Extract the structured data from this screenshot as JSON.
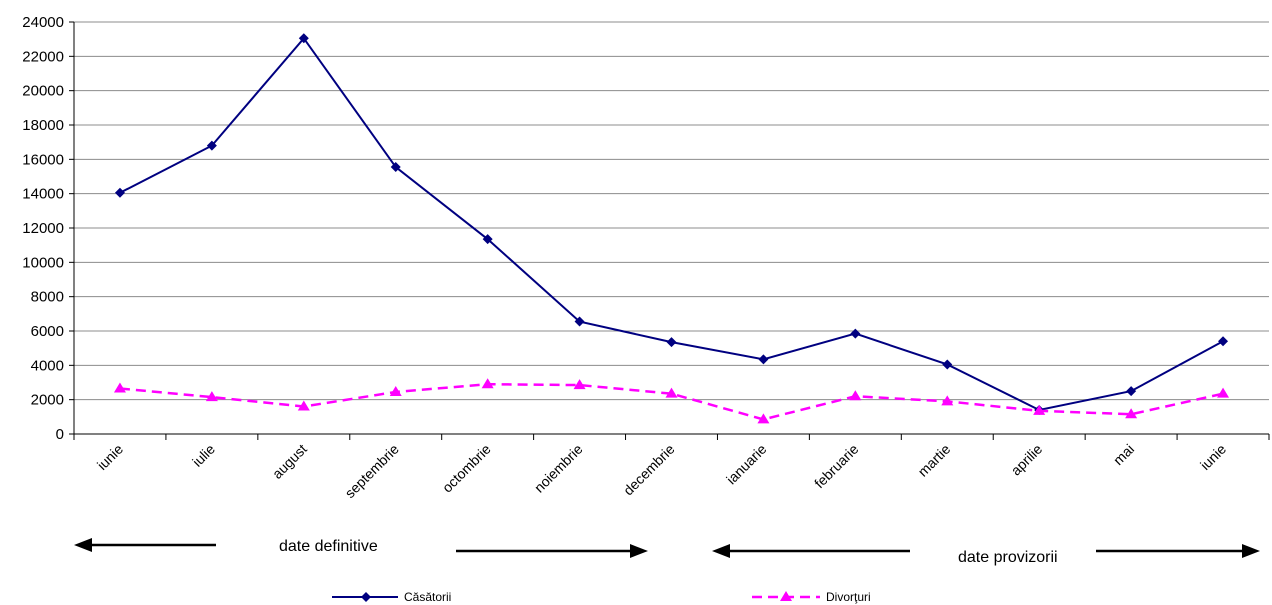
{
  "chart_data": {
    "type": "line",
    "categories": [
      "iunie",
      "iulie",
      "august",
      "septembrie",
      "octombrie",
      "noiembrie",
      "decembrie",
      "ianuarie",
      "februarie",
      "martie",
      "aprilie",
      "mai",
      "iunie"
    ],
    "series": [
      {
        "name": "Căsătorii",
        "color": "#000080",
        "marker": "diamond",
        "dash": "solid",
        "values": [
          14050,
          16800,
          23050,
          15550,
          11350,
          6550,
          5350,
          4350,
          5850,
          4050,
          1400,
          2500,
          5400
        ]
      },
      {
        "name": "Divorţuri",
        "color": "#FF00FF",
        "marker": "triangle",
        "dash": "dashed",
        "values": [
          2650,
          2150,
          1600,
          2450,
          2900,
          2850,
          2350,
          850,
          2200,
          1900,
          1350,
          1150,
          2350
        ]
      }
    ],
    "ylim": [
      0,
      24000
    ],
    "yticks": [
      0,
      2000,
      4000,
      6000,
      8000,
      10000,
      12000,
      14000,
      16000,
      18000,
      20000,
      22000,
      24000
    ],
    "grid": true,
    "legend_position": "bottom",
    "title": "",
    "xlabel": "",
    "ylabel": "",
    "annotations": [
      {
        "text": "date definitive",
        "direction": "both-arrows-left-right"
      },
      {
        "text": "date provizorii",
        "direction": "both-arrows-left-right"
      }
    ]
  }
}
